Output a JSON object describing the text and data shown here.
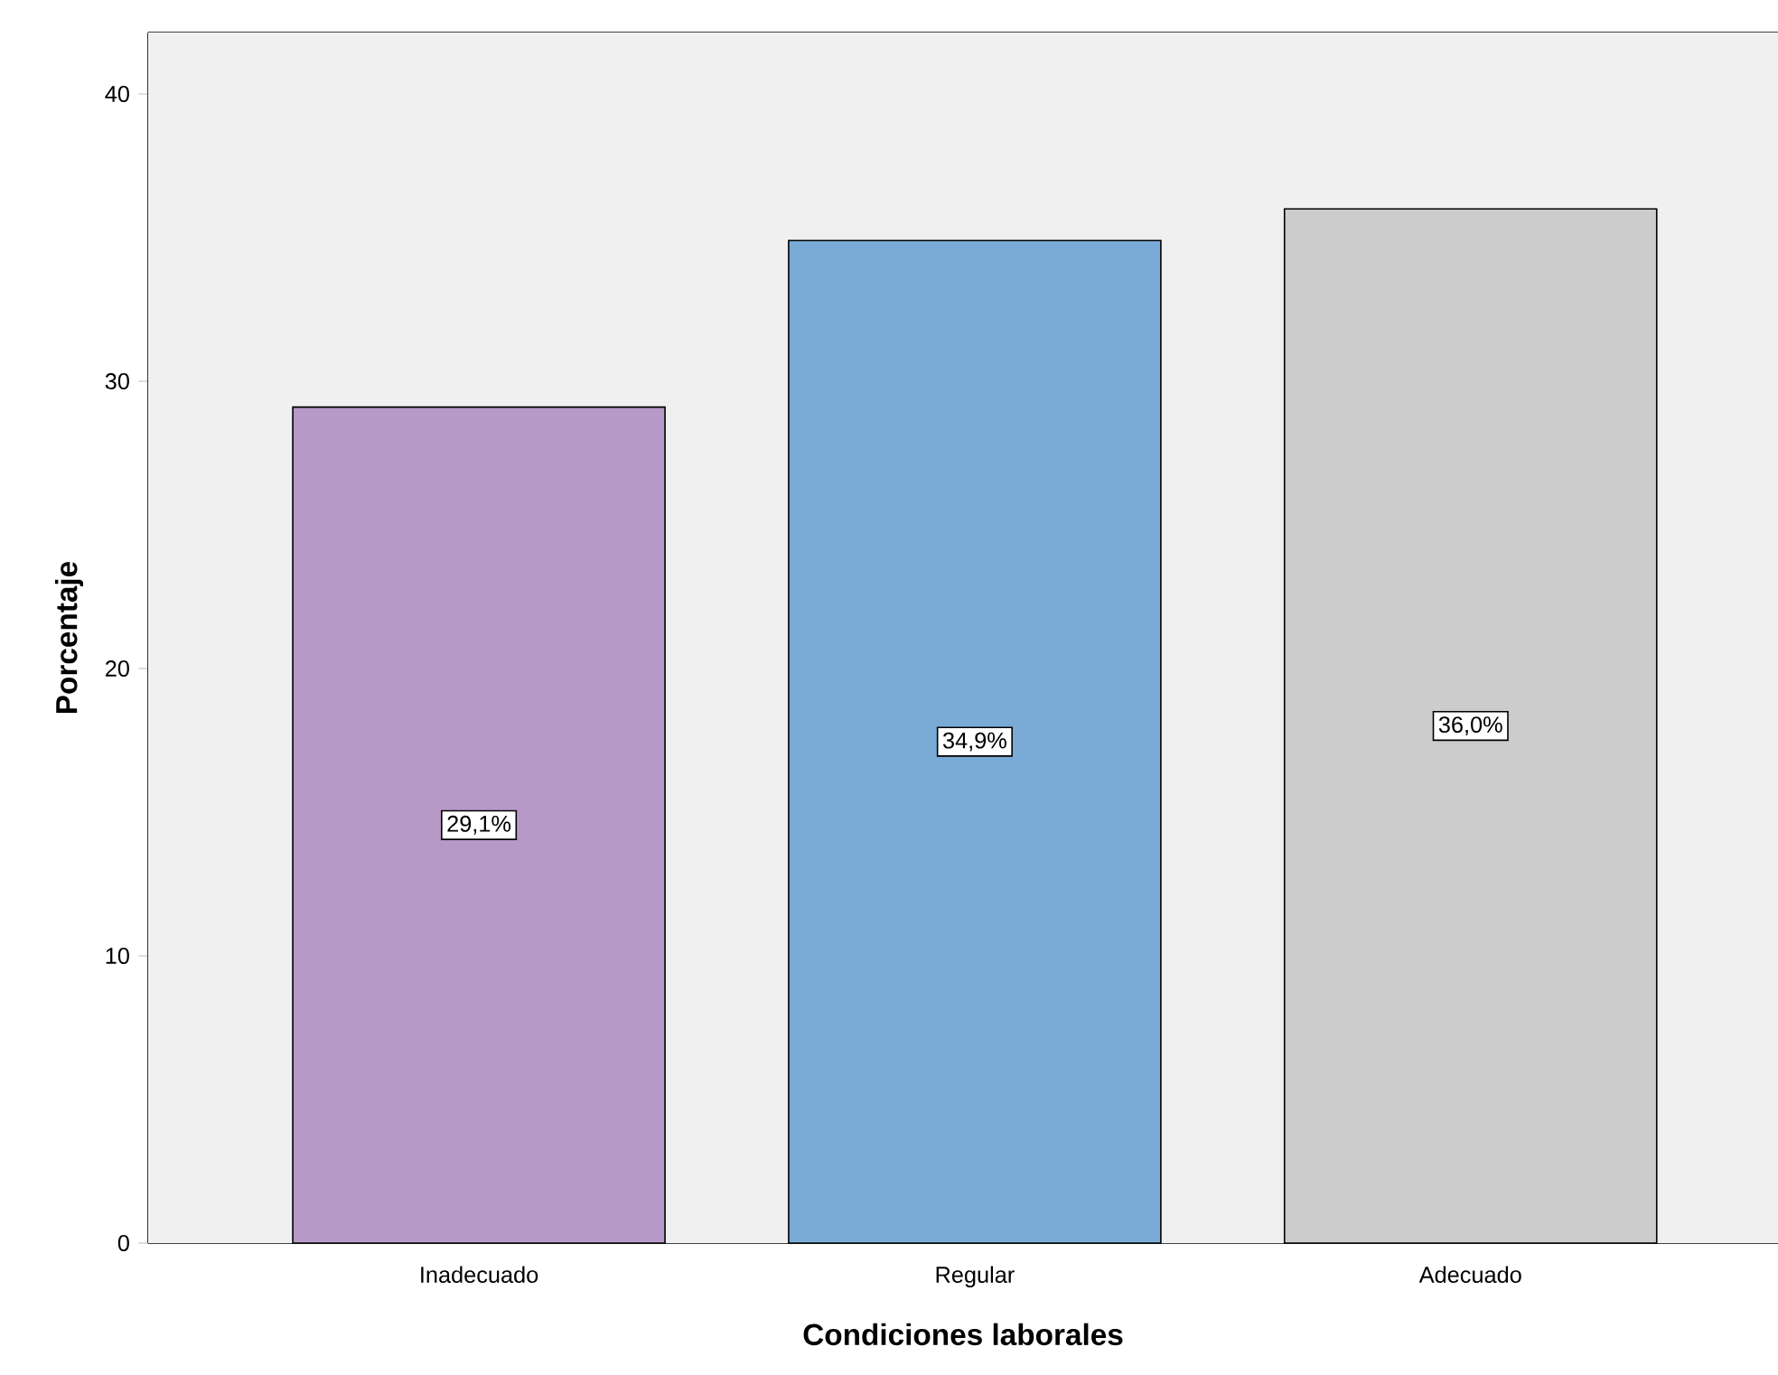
{
  "chart_data": {
    "type": "bar",
    "xlabel": "Condiciones laborales",
    "ylabel": "Porcentaje",
    "categories": [
      "Inadecuado",
      "Regular",
      "Adecuado"
    ],
    "values": [
      29.1,
      34.9,
      36.0
    ],
    "colors": [
      "#b799c8",
      "#7aaad6",
      "#cccccc"
    ],
    "value_labels": [
      "29,1%",
      "34,9%",
      "36,0%"
    ],
    "ylim": [
      0,
      42.14
    ],
    "yticks": [
      0,
      10,
      20,
      30,
      40
    ],
    "grid": false
  }
}
